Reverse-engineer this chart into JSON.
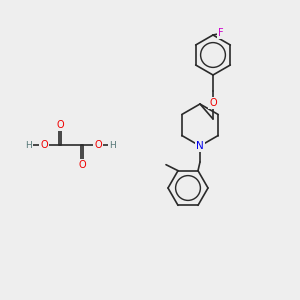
{
  "bg_color": "#eeeeee",
  "bond_color": "#2a2a2a",
  "atom_colors": {
    "O": "#ee0000",
    "N": "#0000ee",
    "F": "#cc00cc",
    "H": "#557777",
    "C": "#2a2a2a"
  }
}
